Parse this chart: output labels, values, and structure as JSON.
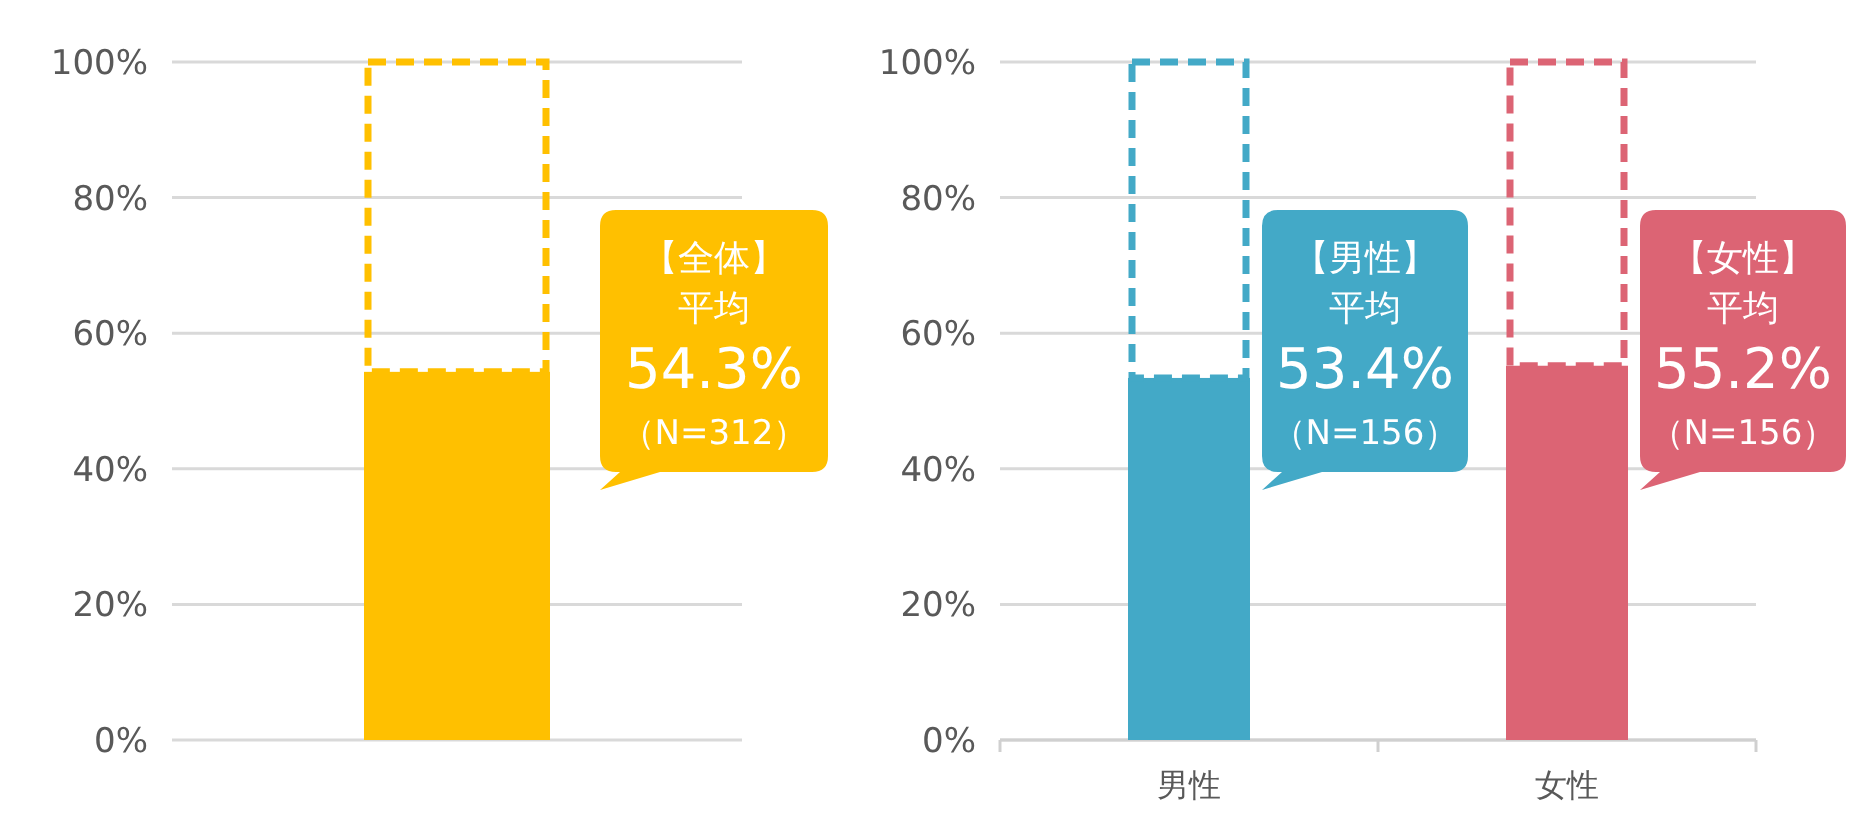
{
  "chart_data": [
    {
      "type": "bar",
      "stacked": true,
      "categories": [
        null
      ],
      "series": [
        {
          "color": "#ffc000",
          "values": [
            54.3
          ]
        },
        {
          "color": "#ffc000",
          "values": [
            45.7
          ],
          "line_style": "dashed"
        }
      ],
      "ylim": [
        0,
        100
      ],
      "yticks": [
        {
          "value": 0,
          "label": "0%"
        },
        {
          "value": 20,
          "label": "20%"
        },
        {
          "value": 40,
          "label": "40%"
        },
        {
          "value": 60,
          "label": "60%"
        },
        {
          "value": 80,
          "label": "80%"
        },
        {
          "value": 100,
          "label": "100%"
        }
      ],
      "grid": "y",
      "annotations": [
        "【全体】",
        "平均",
        "54.3%",
        "（N=312）"
      ]
    },
    {
      "type": "bar",
      "stacked": true,
      "categories": [
        "男性",
        "女性"
      ],
      "series": [
        {
          "colors": [
            "#43a9c7",
            "#dc6474"
          ],
          "values": [
            53.4,
            55.2
          ]
        },
        {
          "colors": [
            "#43a9c7",
            "#dc6474"
          ],
          "values": [
            46.6,
            44.8
          ],
          "line_style": "dashed"
        }
      ],
      "ylim": [
        0,
        100
      ],
      "yticks": [
        {
          "value": 0,
          "label": "0%"
        },
        {
          "value": 20,
          "label": "20%"
        },
        {
          "value": 40,
          "label": "40%"
        },
        {
          "value": 60,
          "label": "60%"
        },
        {
          "value": 80,
          "label": "80%"
        },
        {
          "value": 100,
          "label": "100%"
        }
      ],
      "grid": "y",
      "annotations": [
        "【男性】",
        "平均",
        "53.4%",
        "（N=156）",
        "【女性】",
        "平均",
        "55.2%",
        "（N=156）"
      ]
    }
  ]
}
